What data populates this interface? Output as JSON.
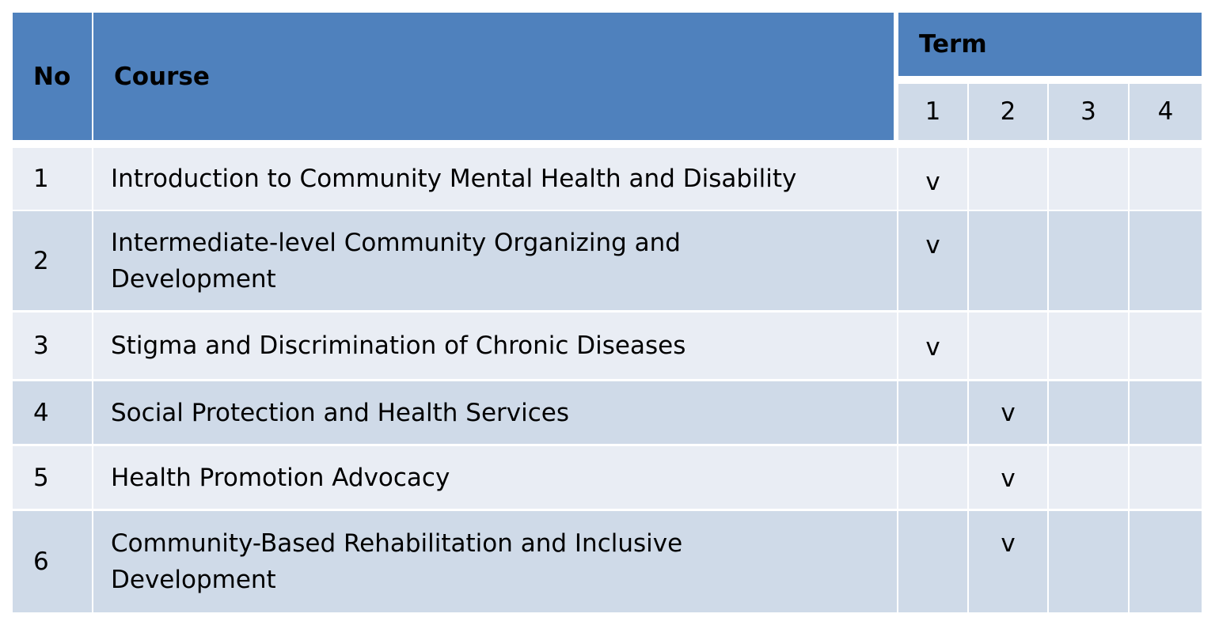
{
  "table": {
    "headers": {
      "no": "No",
      "course": "Course",
      "term": "Term",
      "terms": [
        "1",
        "2",
        "3",
        "4"
      ]
    },
    "rows": [
      {
        "no": "1",
        "course": "Introduction to Community Mental Health and Disability",
        "marks": [
          "v",
          "",
          "",
          ""
        ]
      },
      {
        "no": "2",
        "course": "Intermediate-level Community Organizing and Development",
        "marks": [
          "v",
          "",
          "",
          ""
        ]
      },
      {
        "no": "3",
        "course": "Stigma and Discrimination of Chronic Diseases",
        "marks": [
          "v",
          "",
          "",
          ""
        ]
      },
      {
        "no": "4",
        "course": "Social Protection and Health Services",
        "marks": [
          "",
          "v",
          "",
          ""
        ]
      },
      {
        "no": "5",
        "course": "Health Promotion Advocacy",
        "marks": [
          "",
          "v",
          "",
          ""
        ]
      },
      {
        "no": "6",
        "course": "Community-Based Rehabilitation and Inclusive Development",
        "marks": [
          "",
          "v",
          "",
          ""
        ]
      }
    ]
  },
  "colors": {
    "header": "#4f81bd",
    "subheader": "#cfdae8",
    "row_light": "#e9edf4",
    "row_dark": "#cfdae8"
  }
}
